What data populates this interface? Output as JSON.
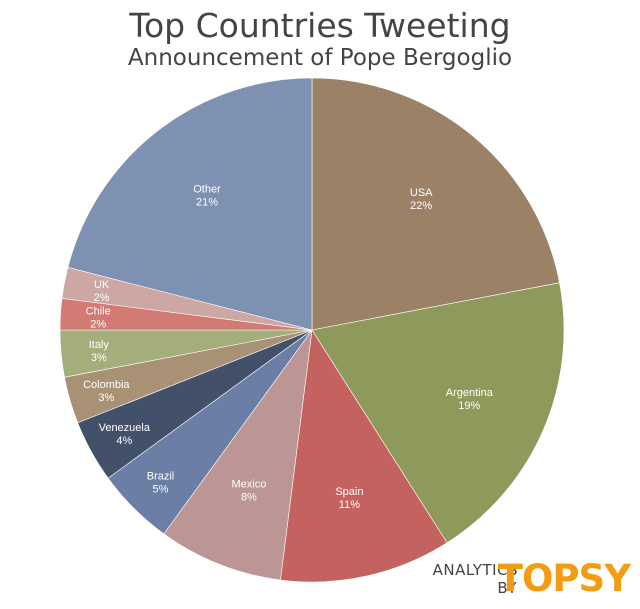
{
  "chart_data": {
    "type": "pie",
    "title": "Top Countries Tweeting",
    "subtitle": "Announcement of Pope Bergoglio",
    "slices": [
      {
        "label": "USA",
        "value": 22,
        "text": "22%",
        "color": "#9b8266"
      },
      {
        "label": "Argentina",
        "value": 19,
        "text": "19%",
        "color": "#8e9a5c"
      },
      {
        "label": "Spain",
        "value": 11,
        "text": "11%",
        "color": "#c4625f"
      },
      {
        "label": "Mexico",
        "value": 8,
        "text": "8%",
        "color": "#bc9694"
      },
      {
        "label": "Brazil",
        "value": 5,
        "text": "5%",
        "color": "#6b7fa6"
      },
      {
        "label": "Venezuela",
        "value": 4,
        "text": "4%",
        "color": "#43506a"
      },
      {
        "label": "Colombia",
        "value": 3,
        "text": "3%",
        "color": "#a99176"
      },
      {
        "label": "Italy",
        "value": 3,
        "text": "3%",
        "color": "#a3ae7a"
      },
      {
        "label": "Chile",
        "value": 2,
        "text": "2%",
        "color": "#d27b74"
      },
      {
        "label": "UK",
        "value": 2,
        "text": "2%",
        "color": "#cda7a3"
      },
      {
        "label": "Other",
        "value": 21,
        "text": "21%",
        "color": "#7e91b2"
      }
    ]
  },
  "branding": {
    "line1": "ANALYTICS",
    "line2": "BY",
    "logo": "TOPSY"
  }
}
